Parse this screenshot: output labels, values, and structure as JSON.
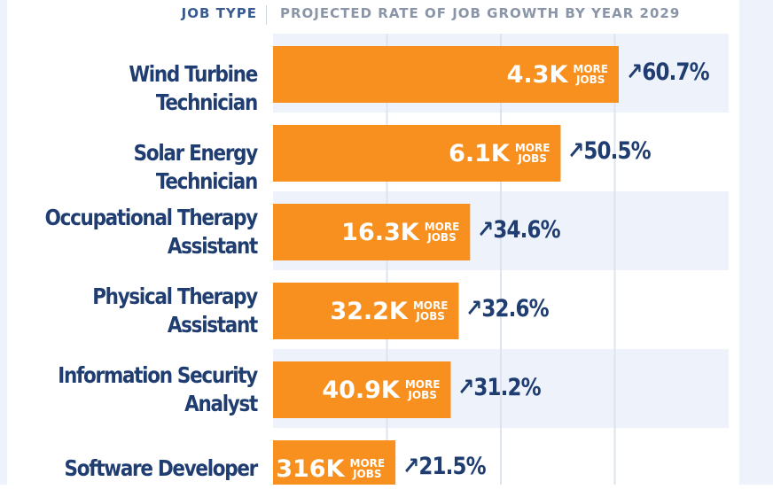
{
  "header": {
    "left": "JOB TYPE",
    "right": "PROJECTED RATE OF JOB GROWTH BY YEAR 2029"
  },
  "colors": {
    "bar": "#f7901e",
    "label": "#1f3d70",
    "stripe": "#eef3fb",
    "grid": "#dde4ef"
  },
  "chart_data": {
    "type": "bar",
    "orientation": "horizontal",
    "title": "PROJECTED RATE OF JOB GROWTH BY YEAR 2029",
    "ylabel": "JOB TYPE",
    "categories": [
      [
        "Wind Turbine Technician"
      ],
      [
        "Solar Energy Technician"
      ],
      [
        "Occupational Therapy",
        "Assistant"
      ],
      [
        "Physical Therapy",
        "Assistant"
      ],
      [
        "Information Security",
        "Analyst"
      ],
      [
        "Software Developer"
      ]
    ],
    "values": [
      60.7,
      50.5,
      34.6,
      32.6,
      31.2,
      21.5
    ],
    "value_labels": [
      "↗60.7%",
      "↗50.5%",
      "↗34.6%",
      "↗32.6%",
      "↗31.2%",
      "↗21.5%"
    ],
    "bar_labels": [
      "4.3K",
      "6.1K",
      "16.3K",
      "32.2K",
      "40.9K",
      "316K"
    ],
    "bar_sublabel": [
      "MORE",
      "JOBS"
    ],
    "xlim": [
      0,
      80
    ],
    "grid": true
  }
}
